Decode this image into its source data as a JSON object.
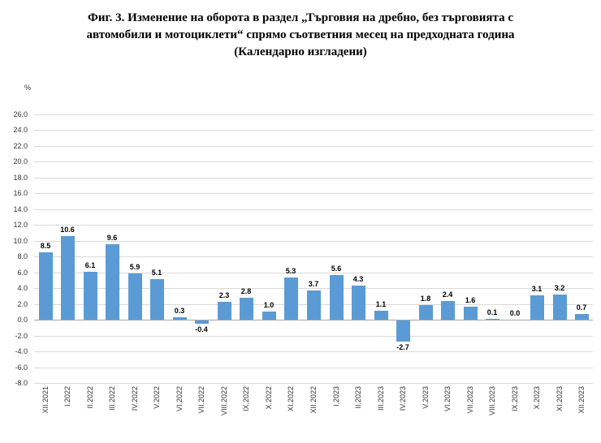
{
  "title": {
    "full": "Фиг. 3. Изменение на оборота в раздел „Търговия на дребно, без търговията с автомобили и мотоциклети“ спрямо съответния месец на предходната година (Календарно изгладени)",
    "lines": [
      "Фиг. 3. Изменение на оборота в раздел „Търговия на дребно, без търговията с",
      "автомобили и мотоциклети“ спрямо съответния месец на предходната година",
      "(Календарно изгладени)"
    ]
  },
  "chart_data": {
    "type": "bar",
    "title": "Фиг. 3. Изменение на оборота в раздел „Търговия на дребно, без търговията с автомобили и мотоциклети“ спрямо съответния месец на предходната година (Календарно изгладени)",
    "xlabel": "",
    "ylabel": "%",
    "categories": [
      "XII.2021",
      "I.2022",
      "II.2022",
      "III.2022",
      "IV.2022",
      "V.2022",
      "VI.2022",
      "VII.2022",
      "VIII.2022",
      "IX.2022",
      "X.2022",
      "XI.2022",
      "XII.2022",
      "I.2023",
      "II.2023",
      "III.2023",
      "IV.2023",
      "V.2023",
      "VI.2023",
      "VII.2023",
      "VIII.2023",
      "IX.2023",
      "X.2023",
      "XI.2023",
      "XII.2023"
    ],
    "values": [
      8.5,
      10.6,
      6.1,
      9.6,
      5.9,
      5.1,
      0.3,
      -0.4,
      2.3,
      2.8,
      1.0,
      5.3,
      3.7,
      5.6,
      4.3,
      1.1,
      -2.7,
      1.8,
      2.4,
      1.6,
      0.1,
      0.0,
      3.1,
      3.2,
      0.7
    ],
    "ylim": [
      -8.0,
      26.0
    ],
    "ytick_step": 2.0,
    "grid": true,
    "legend": false,
    "data_labels": true,
    "bar_color": "#5B9BD5",
    "grid_color": "#D9D9D9",
    "zero_axis_color": "#A6A6A6",
    "tick_label_color": "#333333",
    "value_label_color": "#000000"
  }
}
